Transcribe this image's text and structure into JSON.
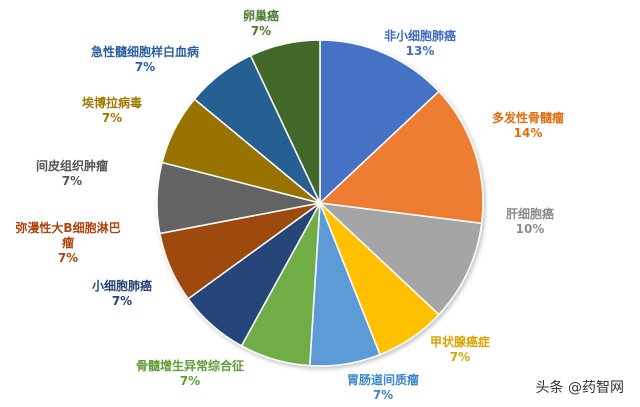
{
  "chart_data": {
    "type": "pie",
    "title": "",
    "slices": [
      {
        "label": "非小细胞肺癌",
        "value": 13,
        "value_label": "13%",
        "color": "#4472C4",
        "label_color": "#3F6BC6"
      },
      {
        "label": "多发性骨髓瘤",
        "value": 14,
        "value_label": "14%",
        "color": "#ED7D31",
        "label_color": "#E36C0A"
      },
      {
        "label": "肝细胞癌",
        "value": 10,
        "value_label": "10%",
        "color": "#A5A5A5",
        "label_color": "#8C8C8C"
      },
      {
        "label": "甲状腺癌症",
        "value": 7,
        "value_label": "7%",
        "color": "#FFC000",
        "label_color": "#D9A400"
      },
      {
        "label": "胃肠道间质瘤",
        "value": 7,
        "value_label": "7%",
        "color": "#5B9BD5",
        "label_color": "#3D86C6"
      },
      {
        "label": "骨髓增生异常综合征",
        "value": 7,
        "value_label": "7%",
        "color": "#70AD47",
        "label_color": "#5E9C35"
      },
      {
        "label": "小细胞肺癌",
        "value": 7,
        "value_label": "7%",
        "color": "#264478",
        "label_color": "#264478"
      },
      {
        "label": "弥漫性大B细胞淋巴瘤",
        "value": 7,
        "value_label": "7%",
        "color": "#9E480E",
        "label_color": "#B0440E"
      },
      {
        "label": "间皮组织肿瘤",
        "value": 7,
        "value_label": "7%",
        "color": "#636363",
        "label_color": "#555555"
      },
      {
        "label": "埃博拉病毒",
        "value": 7,
        "value_label": "7%",
        "color": "#997300",
        "label_color": "#A07800"
      },
      {
        "label": "急性髓细胞样白血病",
        "value": 7,
        "value_label": "7%",
        "color": "#255E91",
        "label_color": "#2A5FA0"
      },
      {
        "label": "卵巢癌",
        "value": 7,
        "value_label": "7%",
        "color": "#43682B",
        "label_color": "#4C7A2E"
      }
    ],
    "legend": "none"
  },
  "watermark": "头条 @药智网"
}
